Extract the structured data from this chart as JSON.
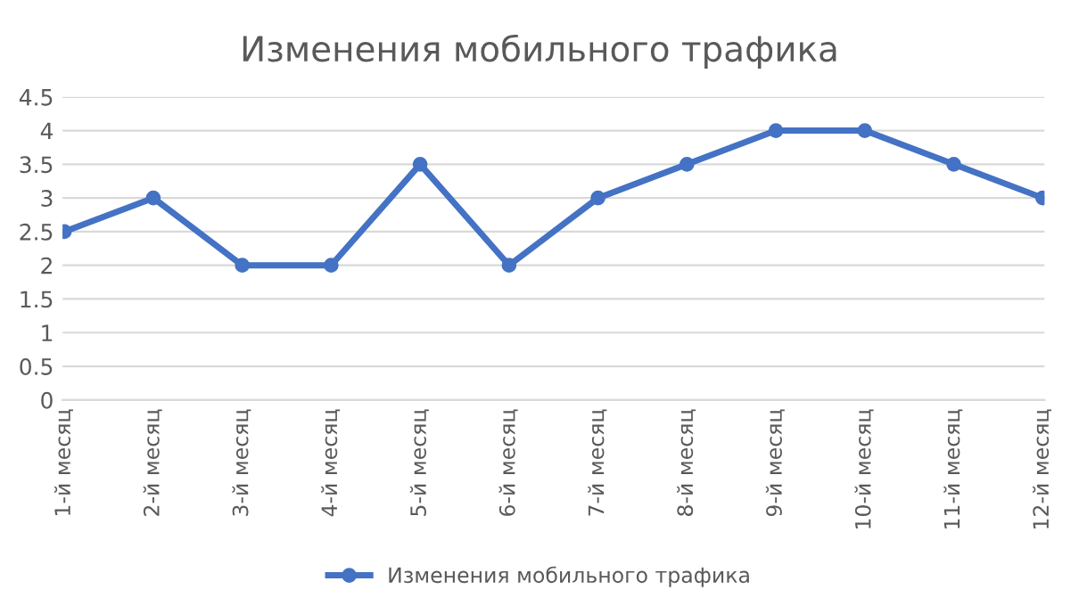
{
  "chart_data": {
    "type": "line",
    "title": "Изменения мобильного трафика",
    "categories": [
      "1-й месяц",
      "2-й месяц",
      "3-й месяц",
      "4-й месяц",
      "5-й месяц",
      "6-й месяц",
      "7-й месяц",
      "8-й месяц",
      "9-й месяц",
      "10-й месяц",
      "11-й месяц",
      "12-й месяц"
    ],
    "series": [
      {
        "name": "Изменения мобильного трафика",
        "color": "#4472c4",
        "values": [
          2.5,
          3,
          2,
          2,
          3.5,
          2,
          3,
          3.5,
          4,
          4,
          3.5,
          3
        ]
      }
    ],
    "ylim": [
      0,
      4.5
    ],
    "yticks": [
      0,
      0.5,
      1,
      1.5,
      2,
      2.5,
      3,
      3.5,
      4,
      4.5
    ],
    "grid": "y",
    "legend": "bottom",
    "marker": "circle",
    "line_style": "solid"
  }
}
